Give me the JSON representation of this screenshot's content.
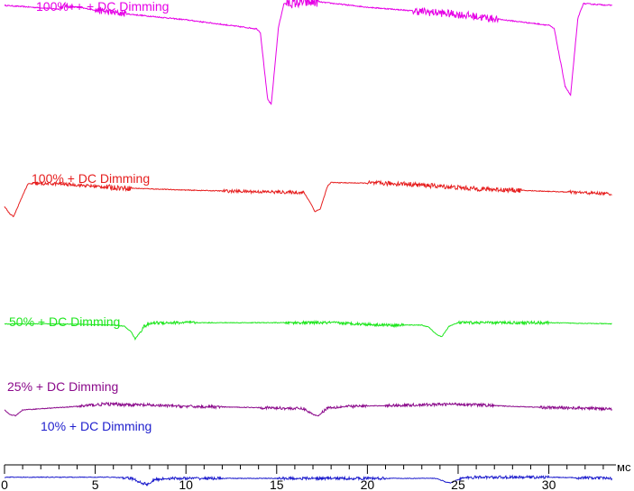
{
  "chart_data": {
    "type": "line",
    "title": "",
    "xlabel": "мс",
    "ylabel": "",
    "xlim": [
      0,
      33.6
    ],
    "x_ticks": [
      0,
      5,
      10,
      15,
      20,
      25,
      30
    ],
    "x_tick_labels": [
      "0",
      "5",
      "10",
      "15",
      "20",
      "25",
      "30"
    ],
    "x_minor_step": 1,
    "grid": false,
    "legend": "none",
    "series": [
      {
        "name": "100%++ + DC Dimming",
        "color": "#e600e6",
        "points": [
          [
            0,
            0.97
          ],
          [
            3,
            0.95
          ],
          [
            3.3,
            0.97
          ],
          [
            6,
            0.93
          ],
          [
            10,
            0.89
          ],
          [
            13.9,
            0.84
          ],
          [
            14.1,
            0.82
          ],
          [
            14.5,
            0.45
          ],
          [
            14.7,
            0.42
          ],
          [
            15.1,
            0.85
          ],
          [
            15.4,
            0.98
          ],
          [
            17.3,
            0.99
          ],
          [
            20,
            0.96
          ],
          [
            25,
            0.92
          ],
          [
            30,
            0.86
          ],
          [
            30.3,
            0.84
          ],
          [
            30.9,
            0.52
          ],
          [
            31.2,
            0.47
          ],
          [
            31.6,
            0.9
          ],
          [
            31.9,
            0.98
          ],
          [
            33.5,
            0.97
          ]
        ],
        "noise": [
          [
            3,
            3.8,
            0.012
          ],
          [
            5,
            6.7,
            0.018
          ],
          [
            15.5,
            17.3,
            0.028
          ],
          [
            22.5,
            26.5,
            0.022
          ],
          [
            26.2,
            27.2,
            0.02
          ]
        ]
      },
      {
        "name": "100% + DC Dimming",
        "color": "#e61e1e",
        "points": [
          [
            0,
            0.72
          ],
          [
            0.3,
            0.66
          ],
          [
            0.5,
            0.64
          ],
          [
            1.1,
            0.84
          ],
          [
            1.3,
            0.9
          ],
          [
            3,
            0.9
          ],
          [
            6,
            0.87
          ],
          [
            10,
            0.85
          ],
          [
            13,
            0.84
          ],
          [
            16.5,
            0.83
          ],
          [
            16.9,
            0.74
          ],
          [
            17.1,
            0.68
          ],
          [
            17.4,
            0.7
          ],
          [
            17.8,
            0.88
          ],
          [
            18,
            0.91
          ],
          [
            22,
            0.9
          ],
          [
            26,
            0.86
          ],
          [
            30,
            0.84
          ],
          [
            33.5,
            0.82
          ]
        ],
        "noise": [
          [
            1.5,
            6.5,
            0.012
          ],
          [
            5.5,
            7,
            0.02
          ],
          [
            12,
            16.5,
            0.012
          ],
          [
            20,
            27,
            0.018
          ],
          [
            26,
            28.5,
            0.018
          ],
          [
            31,
            33.5,
            0.012
          ]
        ]
      },
      {
        "name": "50% + DC Dimming",
        "color": "#1ee61e",
        "points": [
          [
            0,
            0.85
          ],
          [
            3,
            0.85
          ],
          [
            6,
            0.84
          ],
          [
            6.6,
            0.83
          ],
          [
            7,
            0.78
          ],
          [
            7.2,
            0.72
          ],
          [
            7.7,
            0.83
          ],
          [
            8.2,
            0.86
          ],
          [
            15,
            0.86
          ],
          [
            18,
            0.86
          ],
          [
            21,
            0.84
          ],
          [
            23,
            0.84
          ],
          [
            23.4,
            0.82
          ],
          [
            23.8,
            0.76
          ],
          [
            24.1,
            0.74
          ],
          [
            24.5,
            0.83
          ],
          [
            25,
            0.86
          ],
          [
            30,
            0.86
          ],
          [
            33.5,
            0.85
          ]
        ],
        "noise": [
          [
            7.5,
            10.5,
            0.014
          ],
          [
            15.5,
            22,
            0.012
          ],
          [
            25,
            30,
            0.012
          ],
          [
            28.5,
            30,
            0.014
          ]
        ]
      },
      {
        "name": "25% + DC Dimming",
        "color": "#8b0a8b",
        "points": [
          [
            0,
            0.5
          ],
          [
            0.3,
            0.46
          ],
          [
            0.6,
            0.45
          ],
          [
            1,
            0.5
          ],
          [
            2,
            0.51
          ],
          [
            4,
            0.53
          ],
          [
            5.5,
            0.55
          ],
          [
            8,
            0.54
          ],
          [
            10,
            0.53
          ],
          [
            14,
            0.52
          ],
          [
            16.5,
            0.51
          ],
          [
            17,
            0.46
          ],
          [
            17.3,
            0.45
          ],
          [
            17.8,
            0.52
          ],
          [
            19,
            0.53
          ],
          [
            22,
            0.54
          ],
          [
            25,
            0.55
          ],
          [
            28,
            0.53
          ],
          [
            30,
            0.52
          ],
          [
            33.5,
            0.51
          ]
        ],
        "noise": [
          [
            4,
            8,
            0.014
          ],
          [
            8,
            12,
            0.012
          ],
          [
            14,
            17,
            0.012
          ],
          [
            17.5,
            20,
            0.012
          ],
          [
            21,
            27,
            0.012
          ],
          [
            29.5,
            33.5,
            0.012
          ]
        ]
      },
      {
        "name": "10% + DC Dimming",
        "color": "#1e1ecd",
        "points": [
          [
            0,
            0.31
          ],
          [
            3,
            0.31
          ],
          [
            6,
            0.31
          ],
          [
            7,
            0.3
          ],
          [
            7.6,
            0.26
          ],
          [
            7.9,
            0.25
          ],
          [
            8.3,
            0.29
          ],
          [
            9,
            0.3
          ],
          [
            12,
            0.3
          ],
          [
            15,
            0.3
          ],
          [
            18,
            0.3
          ],
          [
            21,
            0.3
          ],
          [
            23.8,
            0.3
          ],
          [
            24.3,
            0.27
          ],
          [
            24.6,
            0.26
          ],
          [
            25.1,
            0.3
          ],
          [
            26,
            0.31
          ],
          [
            30,
            0.31
          ],
          [
            33.5,
            0.3
          ]
        ],
        "noise": [
          [
            6.5,
            12,
            0.012
          ],
          [
            15,
            21,
            0.012
          ],
          [
            25,
            30,
            0.012
          ],
          [
            31.5,
            33.5,
            0.012
          ]
        ]
      }
    ]
  }
}
